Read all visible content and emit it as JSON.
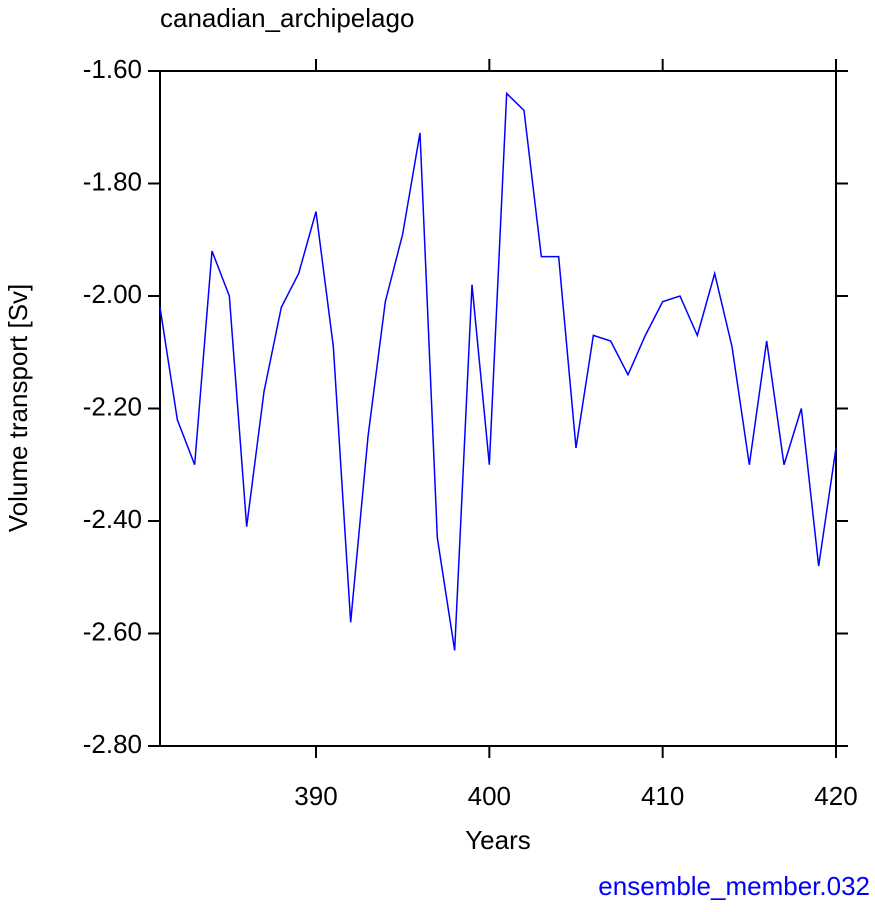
{
  "chart_data": {
    "type": "line",
    "title": "canadian_archipelago",
    "subtitle": "ensemble_member.032",
    "xlabel": "Years",
    "ylabel": "Volume transport [Sv]",
    "x": [
      381,
      382,
      383,
      384,
      385,
      386,
      387,
      388,
      389,
      390,
      391,
      392,
      393,
      394,
      395,
      396,
      397,
      398,
      399,
      400,
      401,
      402,
      403,
      404,
      405,
      406,
      407,
      408,
      409,
      410,
      411,
      412,
      413,
      414,
      415,
      416,
      417,
      418,
      419,
      420
    ],
    "series": [
      {
        "name": "canadian_archipelago",
        "color": "#0000ff",
        "values": [
          -2.02,
          -2.22,
          -2.3,
          -1.92,
          -2.0,
          -2.41,
          -2.17,
          -2.02,
          -1.96,
          -1.85,
          -2.09,
          -2.58,
          -2.25,
          -2.01,
          -1.89,
          -1.71,
          -2.43,
          -2.63,
          -1.98,
          -2.3,
          -1.64,
          -1.67,
          -1.93,
          -1.93,
          -2.27,
          -2.07,
          -2.08,
          -2.14,
          -2.07,
          -2.01,
          -2.0,
          -2.07,
          -1.96,
          -2.09,
          -2.3,
          -2.08,
          -2.3,
          -2.2,
          -2.48,
          -2.27
        ]
      }
    ],
    "xlim": [
      381,
      420
    ],
    "xticks": [
      390,
      400,
      410,
      420
    ],
    "ylim": [
      -2.8,
      -1.6
    ],
    "yticks": [
      {
        "value": -2.8,
        "label": "-2.80"
      },
      {
        "value": -2.6,
        "label": "-2.60"
      },
      {
        "value": -2.4,
        "label": "-2.40"
      },
      {
        "value": -2.2,
        "label": "-2.20"
      },
      {
        "value": -2.0,
        "label": "-2.00"
      },
      {
        "value": -1.8,
        "label": "-1.80"
      },
      {
        "value": -1.6,
        "label": "-1.60"
      }
    ],
    "grid": false
  }
}
